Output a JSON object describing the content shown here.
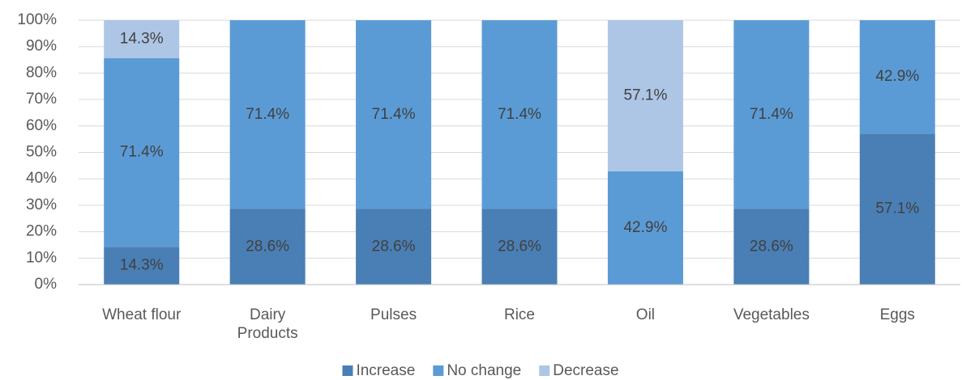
{
  "chart_data": {
    "type": "stacked_bar",
    "categories": [
      "Wheat flour",
      "Dairy Products",
      "Pulses",
      "Rice",
      "Oil",
      "Vegetables",
      "Eggs"
    ],
    "series": [
      {
        "name": "Increase",
        "color": "#4a7fb5",
        "values": [
          14.3,
          28.6,
          28.6,
          28.6,
          0,
          28.6,
          57.1
        ],
        "value_labels": [
          "14.3%",
          "28.6%",
          "28.6%",
          "28.6%",
          null,
          "28.6%",
          "57.1%"
        ]
      },
      {
        "name": "No change",
        "color": "#5b9bd5",
        "values": [
          71.4,
          71.4,
          71.4,
          71.4,
          42.9,
          71.4,
          42.9
        ],
        "value_labels": [
          "71.4%",
          "71.4%",
          "71.4%",
          "71.4%",
          "42.9%",
          "71.4%",
          "42.9%"
        ]
      },
      {
        "name": "Decrease",
        "color": "#aec6e6",
        "values": [
          14.3,
          0,
          0,
          0,
          57.1,
          0,
          0
        ],
        "value_labels": [
          "14.3%",
          null,
          null,
          null,
          "57.1%",
          null,
          null
        ]
      }
    ],
    "ylim": [
      0,
      100
    ],
    "yticks": [
      {
        "value": 0,
        "label": "0%"
      },
      {
        "value": 10,
        "label": "10%"
      },
      {
        "value": 20,
        "label": "20%"
      },
      {
        "value": 30,
        "label": "30%"
      },
      {
        "value": 40,
        "label": "40%"
      },
      {
        "value": 50,
        "label": "50%"
      },
      {
        "value": 60,
        "label": "60%"
      },
      {
        "value": 70,
        "label": "70%"
      },
      {
        "value": 80,
        "label": "80%"
      },
      {
        "value": 90,
        "label": "90%"
      },
      {
        "value": 100,
        "label": "100%"
      }
    ],
    "grid": true,
    "legend": "bottom"
  }
}
